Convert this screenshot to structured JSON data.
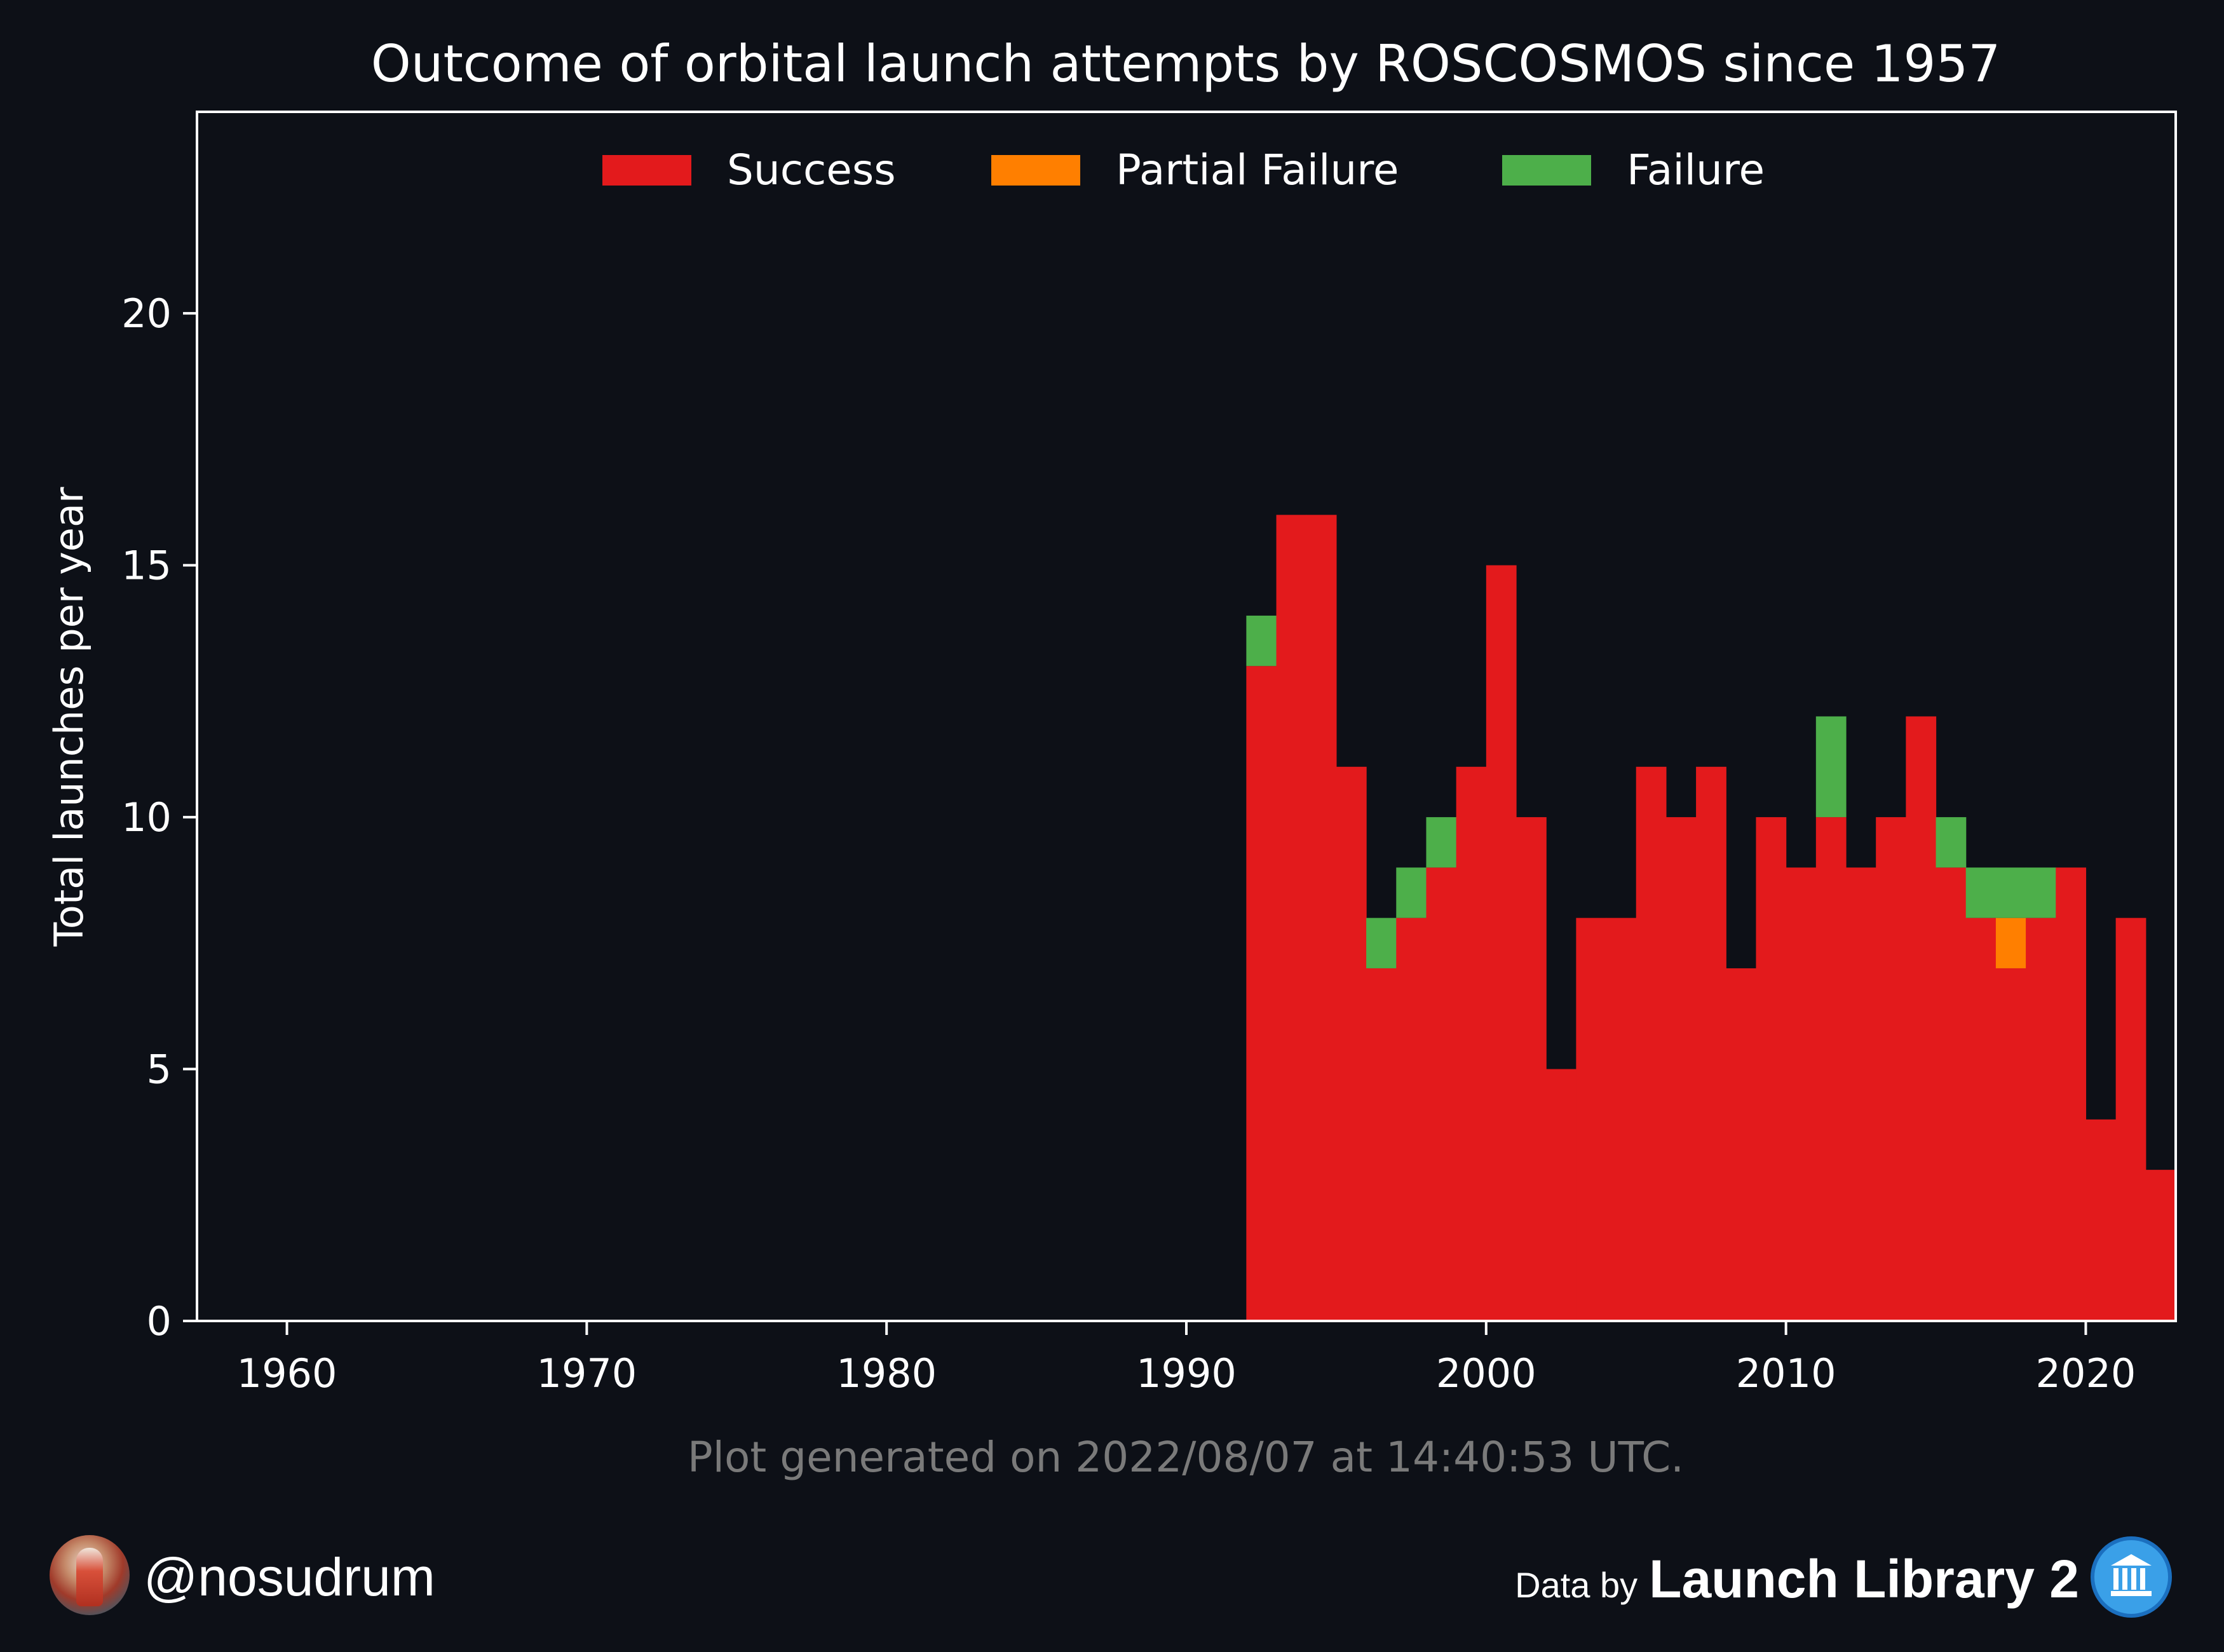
{
  "chart_data": {
    "type": "bar",
    "stacked": true,
    "title": "Outcome of orbital launch attempts by ROSCOSMOS since 1957",
    "xlabel": "",
    "ylabel": "Total launches per year",
    "xlim": [
      1957,
      2023
    ],
    "ylim": [
      0,
      24
    ],
    "x_ticks": [
      "1960",
      "1970",
      "1980",
      "1990",
      "2000",
      "2010",
      "2020"
    ],
    "y_ticks": [
      "0",
      "5",
      "10",
      "15",
      "20"
    ],
    "legend_position": "top-center",
    "grid": false,
    "categories": [
      1992,
      1993,
      1994,
      1995,
      1996,
      1997,
      1998,
      1999,
      2000,
      2001,
      2002,
      2003,
      2004,
      2005,
      2006,
      2007,
      2008,
      2009,
      2010,
      2011,
      2012,
      2013,
      2014,
      2015,
      2016,
      2017,
      2018,
      2019,
      2020,
      2021,
      2022
    ],
    "series": [
      {
        "name": "Success",
        "color": "#e31a1c",
        "values": [
          13,
          16,
          16,
          11,
          7,
          8,
          9,
          11,
          15,
          10,
          5,
          8,
          8,
          11,
          10,
          11,
          7,
          10,
          9,
          10,
          9,
          10,
          12,
          9,
          8,
          7,
          8,
          9,
          4,
          8,
          3
        ]
      },
      {
        "name": "Partial Failure",
        "color": "#ff7f00",
        "values": [
          0,
          0,
          0,
          0,
          0,
          0,
          0,
          0,
          0,
          0,
          0,
          0,
          0,
          0,
          0,
          0,
          0,
          0,
          0,
          0,
          0,
          0,
          0,
          0,
          0,
          1,
          0,
          0,
          0,
          0,
          0
        ]
      },
      {
        "name": "Failure",
        "color": "#4daf4a",
        "values": [
          1,
          0,
          0,
          0,
          1,
          1,
          1,
          0,
          0,
          0,
          0,
          0,
          0,
          0,
          0,
          0,
          0,
          0,
          0,
          2,
          0,
          0,
          0,
          1,
          1,
          1,
          1,
          0,
          0,
          0,
          0
        ]
      }
    ],
    "footnote": "Plot generated on 2022/08/07 at 14:40:53 UTC."
  },
  "footer": {
    "handle": "@nosudrum",
    "credit_prefix": "Data by",
    "credit_brand": "Launch Library 2"
  },
  "colors": {
    "background": "#0d1017",
    "axes": "#ffffff",
    "footnote": "#7a7a7a"
  }
}
